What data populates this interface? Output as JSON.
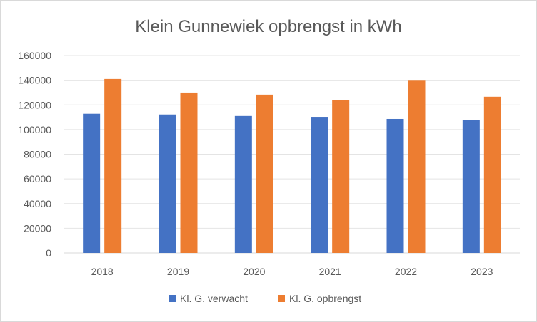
{
  "chart_data": {
    "type": "bar",
    "title": "Klein Gunnewiek opbrengst in kWh",
    "xlabel": "",
    "ylabel": "",
    "categories": [
      "2018",
      "2019",
      "2020",
      "2021",
      "2022",
      "2023"
    ],
    "series": [
      {
        "name": "Kl. G. verwacht",
        "color": "#4472c4",
        "values": [
          112800,
          112200,
          111000,
          110300,
          108600,
          107700
        ]
      },
      {
        "name": "Kl. G. opbrengst",
        "color": "#ed7d31",
        "values": [
          141000,
          130000,
          128300,
          123800,
          140200,
          126600
        ]
      }
    ],
    "ylim": [
      0,
      160000
    ],
    "yticks": [
      "0",
      "20000",
      "40000",
      "60000",
      "80000",
      "100000",
      "120000",
      "140000",
      "160000"
    ],
    "grid": true,
    "legend": "bottom"
  }
}
